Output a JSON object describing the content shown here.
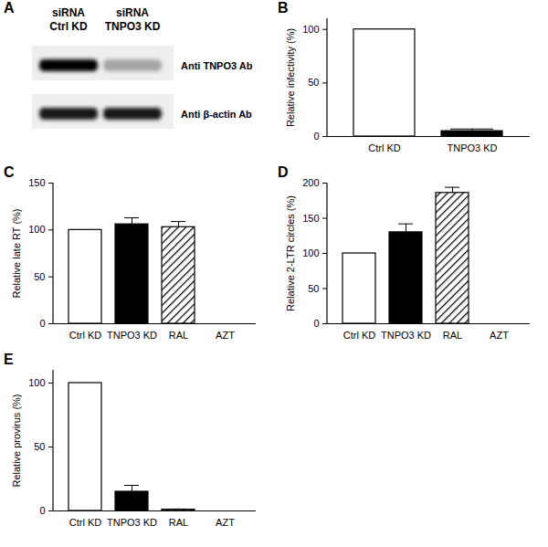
{
  "blot": {
    "title": "A",
    "lanes": [
      [
        "siRNA",
        "Ctrl KD"
      ],
      [
        "siRNA",
        "TNPO3 KD"
      ]
    ],
    "rows": [
      {
        "label": "Anti TNPO3 Ab",
        "band_strength": [
          1,
          0.3
        ]
      },
      {
        "label": "Anti β-actin Ab",
        "band_strength": [
          0.9,
          0.9
        ]
      }
    ]
  },
  "chart_data": [
    {
      "type": "bar",
      "title": "B",
      "y_label": "Relative infectivity (%)",
      "categories": [
        "Ctrl KD",
        "TNPO3 KD"
      ],
      "values": [
        100,
        5
      ],
      "errors": [
        null,
        2
      ],
      "colors": [
        "#ffffff",
        "#000000"
      ],
      "ylim": [
        0,
        110
      ],
      "yticks": [
        0,
        50,
        100
      ]
    },
    {
      "type": "bar",
      "title": "C",
      "y_label": "Relative late RT (%)",
      "categories": [
        "Ctrl KD",
        "TNPO3 KD",
        "RAL",
        "AZT"
      ],
      "values": [
        100,
        106,
        103,
        0
      ],
      "errors": [
        null,
        7,
        6,
        null
      ],
      "colors": [
        "#ffffff",
        "#000000",
        "hatched",
        "#ffffff"
      ],
      "ylim": [
        0,
        150
      ],
      "yticks": [
        0,
        50,
        100,
        150
      ]
    },
    {
      "type": "bar",
      "title": "D",
      "y_label": "Relative 2-LTR circles (%)",
      "categories": [
        "Ctrl KD",
        "TNPO3 KD",
        "RAL",
        "AZT"
      ],
      "values": [
        100,
        130,
        186,
        0
      ],
      "errors": [
        null,
        12,
        8,
        null
      ],
      "colors": [
        "#ffffff",
        "#000000",
        "hatched",
        "#ffffff"
      ],
      "ylim": [
        0,
        200
      ],
      "yticks": [
        0,
        50,
        100,
        150,
        200
      ]
    },
    {
      "type": "bar",
      "title": "E",
      "y_label": "Relative provirus (%)",
      "categories": [
        "Ctrl KD",
        "TNPO3 KD",
        "RAL",
        "AZT"
      ],
      "values": [
        100,
        15,
        1,
        0
      ],
      "errors": [
        null,
        5,
        0.5,
        null
      ],
      "colors": [
        "#ffffff",
        "#000000",
        "hatched",
        "#ffffff"
      ],
      "ylim": [
        0,
        110
      ],
      "yticks": [
        0,
        50,
        100
      ]
    }
  ]
}
